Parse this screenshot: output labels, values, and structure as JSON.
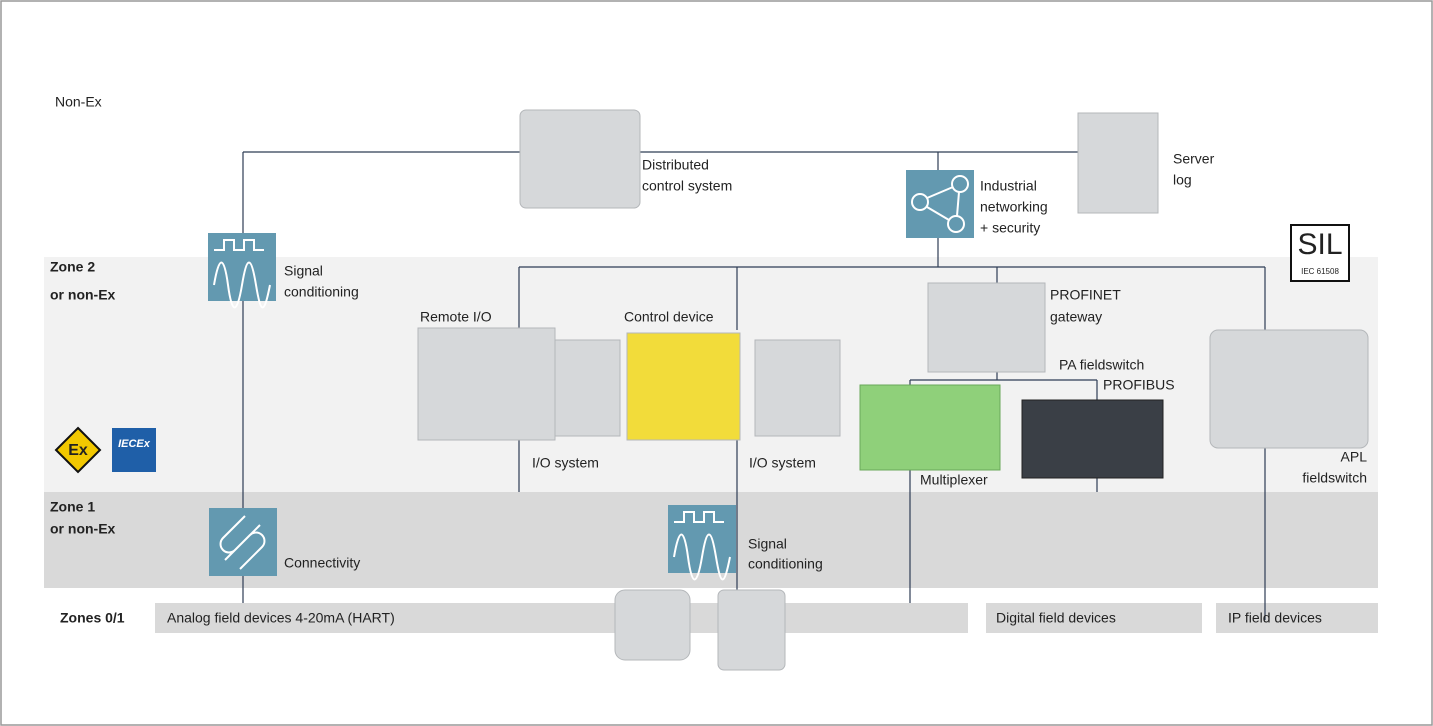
{
  "non_ex": "Non-Ex",
  "zones": [
    {
      "label": [
        "Zone 2",
        "or non-Ex"
      ]
    },
    {
      "label": [
        "Zone 1",
        "or non-Ex"
      ]
    },
    {
      "label": [
        "Zones 0/1"
      ]
    }
  ],
  "nodes": {
    "dcs": [
      "Distributed",
      "control system"
    ],
    "server": [
      "Server",
      "log"
    ],
    "networking": [
      "Industrial",
      "networking",
      "+ security"
    ],
    "signal_top": [
      "Signal",
      "conditioning"
    ],
    "remote_io": [
      "Remote I/O"
    ],
    "control_device": [
      "Control device"
    ],
    "profinet": [
      "PROFINET",
      "gateway"
    ],
    "pa_fieldswitch": [
      "PA fieldswitch"
    ],
    "profibus": [
      "PROFIBUS"
    ],
    "io_system_1": [
      "I/O system"
    ],
    "io_system_2": [
      "I/O system"
    ],
    "multiplexer": [
      "Multiplexer"
    ],
    "apl": [
      "APL",
      "fieldswitch"
    ],
    "connectivity": [
      "Connectivity"
    ],
    "signal_bottom": [
      "Signal",
      "conditioning"
    ]
  },
  "field_devices": [
    "Analog field devices 4-20mA (HART)",
    "Digital field devices",
    "IP field devices"
  ],
  "sil": {
    "title": "SIL",
    "standard": "IEC 61508"
  },
  "certifications": [
    "Ex",
    "IECEx"
  ]
}
